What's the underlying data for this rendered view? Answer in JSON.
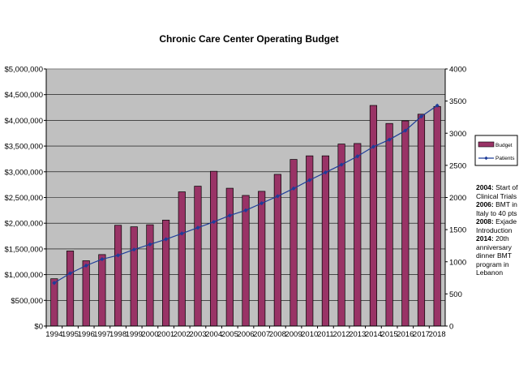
{
  "chart_data": {
    "type": "bar",
    "title": "Chronic Care Center Operating Budget",
    "categories": [
      "1994",
      "1995",
      "1996",
      "1997",
      "1998",
      "1999",
      "2000",
      "2001",
      "2002",
      "2003",
      "2004",
      "2005",
      "2006",
      "2007",
      "2008",
      "2009",
      "2010",
      "2011",
      "2012",
      "2013",
      "2014",
      "2015",
      "2016",
      "2017",
      "2018"
    ],
    "series": [
      {
        "name": "Budget",
        "type": "bar",
        "axis": "left",
        "color": "#993366",
        "values": [
          920000,
          1460000,
          1270000,
          1390000,
          1960000,
          1930000,
          1970000,
          2060000,
          2610000,
          2720000,
          3010000,
          2680000,
          2540000,
          2620000,
          2950000,
          3240000,
          3310000,
          3310000,
          3540000,
          3550000,
          4290000,
          3940000,
          3990000,
          4120000,
          4270000
        ]
      },
      {
        "name": "Patients",
        "type": "line",
        "axis": "right",
        "color": "#1f3d99",
        "values": [
          670,
          820,
          940,
          1040,
          1100,
          1190,
          1270,
          1350,
          1440,
          1530,
          1620,
          1720,
          1800,
          1910,
          2020,
          2140,
          2270,
          2390,
          2510,
          2640,
          2790,
          2900,
          3040,
          3260,
          3430
        ]
      }
    ],
    "y_left": {
      "ylim": [
        0,
        5000000
      ],
      "ticks": [
        "$0",
        "$500,000",
        "$1,000,000",
        "$1,500,000",
        "$2,000,000",
        "$2,500,000",
        "$3,000,000",
        "$3,500,000",
        "$4,000,000",
        "$4,500,000",
        "$5,000,000"
      ]
    },
    "y_right": {
      "ylim": [
        0,
        4000
      ],
      "ticks": [
        "0",
        "500",
        "1000",
        "1500",
        "2000",
        "2500",
        "3000",
        "3500",
        "4000"
      ]
    },
    "grid": true,
    "plot_background": "#c0c0c0",
    "legend_position": "right",
    "xlabel": "",
    "ylabel": ""
  },
  "annotations": [
    {
      "year": "2004:",
      "text": "Start of Clinical Trials"
    },
    {
      "year": "2006:",
      "text": "BMT in Italy to 40 pts"
    },
    {
      "year": "2008:",
      "text": "Exjade Introduction"
    },
    {
      "year": "2014:",
      "text": "20th anniversary dinner BMT program in Lebanon"
    }
  ]
}
